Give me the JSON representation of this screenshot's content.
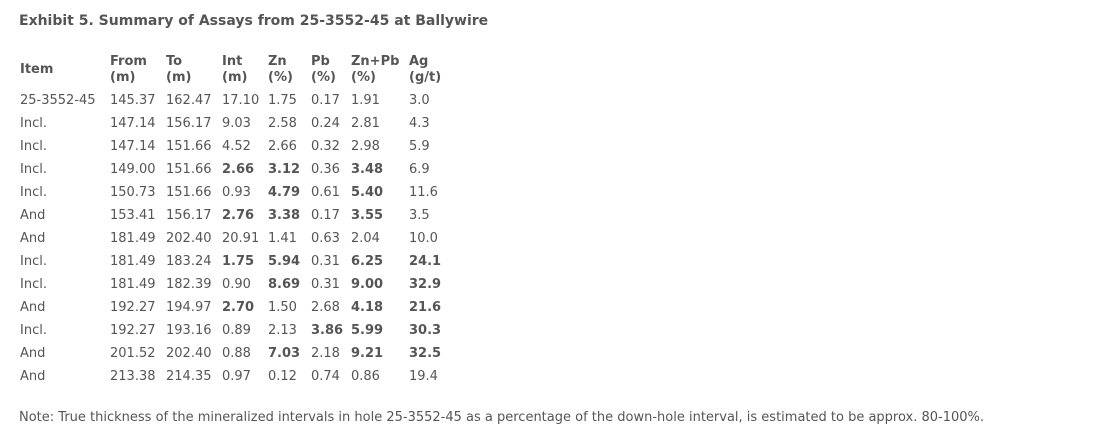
{
  "header": {
    "title": "Exhibit 5. Summary of Assays from 25-3552-45 at Ballywire"
  },
  "table": {
    "columns": [
      {
        "name": "Item"
      },
      {
        "name": "From",
        "unit": "(m)"
      },
      {
        "name": "To",
        "unit": "(m)"
      },
      {
        "name": "Int",
        "unit": "(m)"
      },
      {
        "name": "Zn",
        "unit": "(%)"
      },
      {
        "name": "Pb",
        "unit": "(%)"
      },
      {
        "name": "Zn+Pb",
        "unit": "(%)"
      },
      {
        "name": "Ag",
        "unit": "(g/t)"
      }
    ],
    "rows": [
      [
        "25-3552-45",
        "145.37",
        "162.47",
        "17.10",
        "1.75",
        "0.17",
        "1.91",
        "3.0"
      ],
      [
        "Incl.",
        "147.14",
        "156.17",
        "9.03",
        "2.58",
        "0.24",
        "2.81",
        "4.3"
      ],
      [
        "Incl.",
        "147.14",
        "151.66",
        "4.52",
        "2.66",
        "0.32",
        "2.98",
        "5.9"
      ],
      [
        "Incl.",
        "149.00",
        "151.66",
        "2.66",
        "3.12",
        "0.36",
        "3.48",
        "6.9"
      ],
      [
        "Incl.",
        "150.73",
        "151.66",
        "0.93",
        "4.79",
        "0.61",
        "5.40",
        "11.6"
      ],
      [
        "And",
        "153.41",
        "156.17",
        "2.76",
        "3.38",
        "0.17",
        "3.55",
        "3.5"
      ],
      [
        "And",
        "181.49",
        "202.40",
        "20.91",
        "1.41",
        "0.63",
        "2.04",
        "10.0"
      ],
      [
        "Incl.",
        "181.49",
        "183.24",
        "1.75",
        "5.94",
        "0.31",
        "6.25",
        "24.1"
      ],
      [
        "Incl.",
        "181.49",
        "182.39",
        "0.90",
        "8.69",
        "0.31",
        "9.00",
        "32.9"
      ],
      [
        "And",
        "192.27",
        "194.97",
        "2.70",
        "1.50",
        "2.68",
        "4.18",
        "21.6"
      ],
      [
        "Incl.",
        "192.27",
        "193.16",
        "0.89",
        "2.13",
        "3.86",
        "5.99",
        "30.3"
      ],
      [
        "And",
        "201.52",
        "202.40",
        "0.88",
        "7.03",
        "2.18",
        "9.21",
        "32.5"
      ],
      [
        "And",
        "213.38",
        "214.35",
        "0.97",
        "0.12",
        "0.74",
        "0.86",
        "19.4"
      ]
    ],
    "bold": [
      [],
      [],
      [],
      [
        3,
        4,
        6
      ],
      [
        4,
        6
      ],
      [
        3,
        4,
        6
      ],
      [],
      [
        3,
        4,
        6,
        7
      ],
      [
        4,
        6,
        7
      ],
      [
        3,
        6,
        7
      ],
      [
        5,
        6,
        7
      ],
      [
        4,
        6,
        7
      ],
      []
    ]
  },
  "note": "Note: True thickness of the mineralized intervals in hole 25-3552-45 as a percentage of the down-hole interval, is estimated to be approx. 80-100%."
}
